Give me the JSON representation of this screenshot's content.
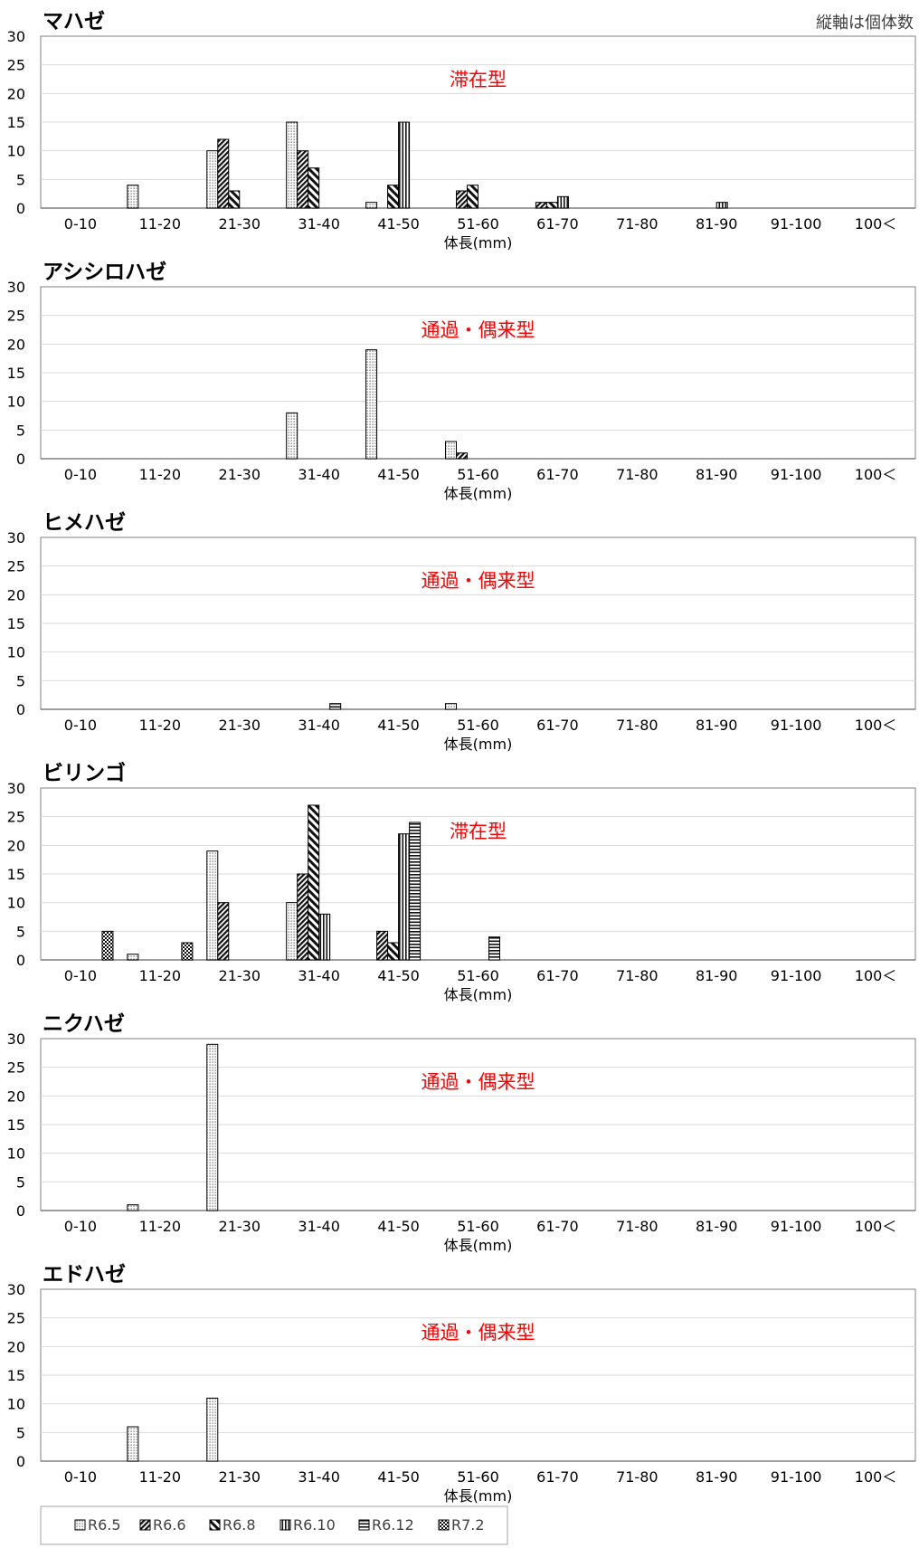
{
  "note": "縦軸は個体数",
  "legend": [
    {
      "label": "R6.5",
      "pattern": "dots"
    },
    {
      "label": "R6.6",
      "pattern": "diag-dense"
    },
    {
      "label": "R6.8",
      "pattern": "diag-bold"
    },
    {
      "label": "R6.10",
      "pattern": "vertical"
    },
    {
      "label": "R6.12",
      "pattern": "horizontal"
    },
    {
      "label": "R7.2",
      "pattern": "checker"
    }
  ],
  "colors": {
    "annotation": "#ff0000",
    "grid": "#d9d9d9",
    "axis": "#7f7f7f",
    "frame": "#808080"
  },
  "chart_data": [
    {
      "type": "bar",
      "title": "マハゼ",
      "annotation": "滞在型",
      "xlabel": "体長(mm)",
      "categories": [
        "0-10",
        "11-20",
        "21-30",
        "31-40",
        "41-50",
        "51-60",
        "61-70",
        "71-80",
        "81-90",
        "91-100",
        "100＜"
      ],
      "ylim": [
        0,
        30
      ],
      "yticks": [
        0,
        5,
        10,
        15,
        20,
        25,
        30
      ],
      "grid": true,
      "series": [
        {
          "name": "R6.5",
          "values": [
            0,
            4,
            10,
            15,
            1,
            0,
            0,
            0,
            0,
            0,
            0
          ]
        },
        {
          "name": "R6.6",
          "values": [
            0,
            0,
            12,
            10,
            0,
            3,
            1,
            0,
            0,
            0,
            0
          ]
        },
        {
          "name": "R6.8",
          "values": [
            0,
            0,
            3,
            7,
            4,
            4,
            1,
            0,
            0,
            0,
            0
          ]
        },
        {
          "name": "R6.10",
          "values": [
            0,
            0,
            0,
            0,
            15,
            0,
            2,
            0,
            1,
            0,
            0
          ]
        },
        {
          "name": "R6.12",
          "values": [
            0,
            0,
            0,
            0,
            0,
            0,
            0,
            0,
            0,
            0,
            0
          ]
        },
        {
          "name": "R7.2",
          "values": [
            0,
            0,
            0,
            0,
            0,
            0,
            0,
            0,
            0,
            0,
            0
          ]
        }
      ]
    },
    {
      "type": "bar",
      "title": "アシシロハゼ",
      "annotation": "通過・偶来型",
      "xlabel": "体長(mm)",
      "categories": [
        "0-10",
        "11-20",
        "21-30",
        "31-40",
        "41-50",
        "51-60",
        "61-70",
        "71-80",
        "81-90",
        "91-100",
        "100＜"
      ],
      "ylim": [
        0,
        30
      ],
      "yticks": [
        0,
        5,
        10,
        15,
        20,
        25,
        30
      ],
      "grid": true,
      "series": [
        {
          "name": "R6.5",
          "values": [
            0,
            0,
            0,
            8,
            19,
            3,
            0,
            0,
            0,
            0,
            0
          ]
        },
        {
          "name": "R6.6",
          "values": [
            0,
            0,
            0,
            0,
            0,
            1,
            0,
            0,
            0,
            0,
            0
          ]
        },
        {
          "name": "R6.8",
          "values": [
            0,
            0,
            0,
            0,
            0,
            0,
            0,
            0,
            0,
            0,
            0
          ]
        },
        {
          "name": "R6.10",
          "values": [
            0,
            0,
            0,
            0,
            0,
            0,
            0,
            0,
            0,
            0,
            0
          ]
        },
        {
          "name": "R6.12",
          "values": [
            0,
            0,
            0,
            0,
            0,
            0,
            0,
            0,
            0,
            0,
            0
          ]
        },
        {
          "name": "R7.2",
          "values": [
            0,
            0,
            0,
            0,
            0,
            0,
            0,
            0,
            0,
            0,
            0
          ]
        }
      ]
    },
    {
      "type": "bar",
      "title": "ヒメハゼ",
      "annotation": "通過・偶来型",
      "xlabel": "体長(mm)",
      "categories": [
        "0-10",
        "11-20",
        "21-30",
        "31-40",
        "41-50",
        "51-60",
        "61-70",
        "71-80",
        "81-90",
        "91-100",
        "100＜"
      ],
      "ylim": [
        0,
        30
      ],
      "yticks": [
        0,
        5,
        10,
        15,
        20,
        25,
        30
      ],
      "grid": true,
      "series": [
        {
          "name": "R6.5",
          "values": [
            0,
            0,
            0,
            0,
            0,
            1,
            0,
            0,
            0,
            0,
            0
          ]
        },
        {
          "name": "R6.6",
          "values": [
            0,
            0,
            0,
            0,
            0,
            0,
            0,
            0,
            0,
            0,
            0
          ]
        },
        {
          "name": "R6.8",
          "values": [
            0,
            0,
            0,
            0,
            0,
            0,
            0,
            0,
            0,
            0,
            0
          ]
        },
        {
          "name": "R6.10",
          "values": [
            0,
            0,
            0,
            0,
            0,
            0,
            0,
            0,
            0,
            0,
            0
          ]
        },
        {
          "name": "R6.12",
          "values": [
            0,
            0,
            0,
            1,
            0,
            0,
            0,
            0,
            0,
            0,
            0
          ]
        },
        {
          "name": "R7.2",
          "values": [
            0,
            0,
            0,
            0,
            0,
            0,
            0,
            0,
            0,
            0,
            0
          ]
        }
      ]
    },
    {
      "type": "bar",
      "title": "ビリンゴ",
      "annotation": "滞在型",
      "xlabel": "体長(mm)",
      "categories": [
        "0-10",
        "11-20",
        "21-30",
        "31-40",
        "41-50",
        "51-60",
        "61-70",
        "71-80",
        "81-90",
        "91-100",
        "100＜"
      ],
      "ylim": [
        0,
        30
      ],
      "yticks": [
        0,
        5,
        10,
        15,
        20,
        25,
        30
      ],
      "grid": true,
      "series": [
        {
          "name": "R6.5",
          "values": [
            0,
            1,
            19,
            10,
            0,
            0,
            0,
            0,
            0,
            0,
            0
          ]
        },
        {
          "name": "R6.6",
          "values": [
            0,
            0,
            10,
            15,
            5,
            0,
            0,
            0,
            0,
            0,
            0
          ]
        },
        {
          "name": "R6.8",
          "values": [
            0,
            0,
            0,
            27,
            3,
            0,
            0,
            0,
            0,
            0,
            0
          ]
        },
        {
          "name": "R6.10",
          "values": [
            0,
            0,
            0,
            8,
            22,
            0,
            0,
            0,
            0,
            0,
            0
          ]
        },
        {
          "name": "R6.12",
          "values": [
            0,
            0,
            0,
            0,
            24,
            4,
            0,
            0,
            0,
            0,
            0
          ]
        },
        {
          "name": "R7.2",
          "values": [
            5,
            3,
            0,
            0,
            0,
            0,
            0,
            0,
            0,
            0,
            0
          ]
        }
      ]
    },
    {
      "type": "bar",
      "title": "ニクハゼ",
      "annotation": "通過・偶来型",
      "xlabel": "体長(mm)",
      "categories": [
        "0-10",
        "11-20",
        "21-30",
        "31-40",
        "41-50",
        "51-60",
        "61-70",
        "71-80",
        "81-90",
        "91-100",
        "100＜"
      ],
      "ylim": [
        0,
        30
      ],
      "yticks": [
        0,
        5,
        10,
        15,
        20,
        25,
        30
      ],
      "grid": true,
      "series": [
        {
          "name": "R6.5",
          "values": [
            0,
            1,
            29,
            0,
            0,
            0,
            0,
            0,
            0,
            0,
            0
          ]
        },
        {
          "name": "R6.6",
          "values": [
            0,
            0,
            0,
            0,
            0,
            0,
            0,
            0,
            0,
            0,
            0
          ]
        },
        {
          "name": "R6.8",
          "values": [
            0,
            0,
            0,
            0,
            0,
            0,
            0,
            0,
            0,
            0,
            0
          ]
        },
        {
          "name": "R6.10",
          "values": [
            0,
            0,
            0,
            0,
            0,
            0,
            0,
            0,
            0,
            0,
            0
          ]
        },
        {
          "name": "R6.12",
          "values": [
            0,
            0,
            0,
            0,
            0,
            0,
            0,
            0,
            0,
            0,
            0
          ]
        },
        {
          "name": "R7.2",
          "values": [
            0,
            0,
            0,
            0,
            0,
            0,
            0,
            0,
            0,
            0,
            0
          ]
        }
      ]
    },
    {
      "type": "bar",
      "title": "エドハゼ",
      "annotation": "通過・偶来型",
      "xlabel": "体長(mm)",
      "categories": [
        "0-10",
        "11-20",
        "21-30",
        "31-40",
        "41-50",
        "51-60",
        "61-70",
        "71-80",
        "81-90",
        "91-100",
        "100＜"
      ],
      "ylim": [
        0,
        30
      ],
      "yticks": [
        0,
        5,
        10,
        15,
        20,
        25,
        30
      ],
      "grid": true,
      "series": [
        {
          "name": "R6.5",
          "values": [
            0,
            6,
            11,
            0,
            0,
            0,
            0,
            0,
            0,
            0,
            0
          ]
        },
        {
          "name": "R6.6",
          "values": [
            0,
            0,
            0,
            0,
            0,
            0,
            0,
            0,
            0,
            0,
            0
          ]
        },
        {
          "name": "R6.8",
          "values": [
            0,
            0,
            0,
            0,
            0,
            0,
            0,
            0,
            0,
            0,
            0
          ]
        },
        {
          "name": "R6.10",
          "values": [
            0,
            0,
            0,
            0,
            0,
            0,
            0,
            0,
            0,
            0,
            0
          ]
        },
        {
          "name": "R6.12",
          "values": [
            0,
            0,
            0,
            0,
            0,
            0,
            0,
            0,
            0,
            0,
            0
          ]
        },
        {
          "name": "R7.2",
          "values": [
            0,
            0,
            0,
            0,
            0,
            0,
            0,
            0,
            0,
            0,
            0
          ]
        }
      ]
    }
  ]
}
